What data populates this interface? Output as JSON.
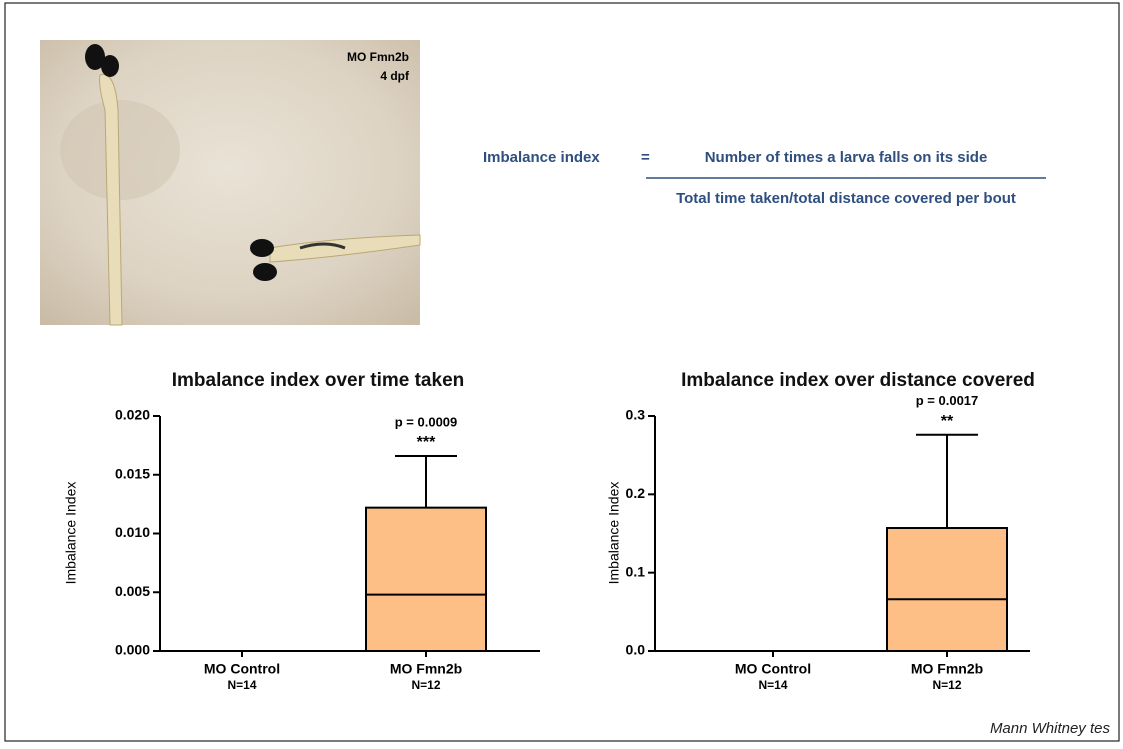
{
  "photo": {
    "labels": [
      "MO Fmn2b",
      "4 dpf"
    ]
  },
  "formula": {
    "term": "Imbalance index",
    "equals": "=",
    "numerator": "Number of times a larva falls on its side",
    "denominator": "Total time taken/total distance covered per bout"
  },
  "chart_data": [
    {
      "type": "box",
      "title": "Imbalance index  over time taken",
      "y_label": "Imbalance Index",
      "categories": [
        "MO Control",
        "MO Fmn2b"
      ],
      "n_labels": [
        "N=14",
        "N=12"
      ],
      "boxes": [
        {
          "min": 0,
          "q1": 0,
          "median": 0,
          "q3": 0,
          "max": 0
        },
        {
          "min": 0,
          "q1": 0,
          "median": 0.0048,
          "q3": 0.0122,
          "max": 0.0166
        }
      ],
      "annotations": [
        null,
        {
          "p": "p = 0.0009",
          "stars": "***"
        }
      ],
      "color": "#fdbf85",
      "ylim": [
        0,
        0.02
      ],
      "yticks": [
        {
          "value": 0,
          "label": "0.000"
        },
        {
          "value": 0.005,
          "label": "0.005"
        },
        {
          "value": 0.01,
          "label": "0.010"
        },
        {
          "value": 0.015,
          "label": "0.015"
        },
        {
          "value": 0.02,
          "label": "0.020"
        }
      ]
    },
    {
      "type": "box",
      "title": "Imbalance index over distance covered",
      "y_label": "Imbalance Index",
      "categories": [
        "MO Control",
        "MO Fmn2b"
      ],
      "n_labels": [
        "N=14",
        "N=12"
      ],
      "boxes": [
        {
          "min": 0,
          "q1": 0,
          "median": 0,
          "q3": 0,
          "max": 0
        },
        {
          "min": 0,
          "q1": 0,
          "median": 0.066,
          "q3": 0.157,
          "max": 0.276
        }
      ],
      "annotations": [
        null,
        {
          "p": "p = 0.0017",
          "stars": "**"
        }
      ],
      "color": "#fdbf85",
      "ylim": [
        0,
        0.3
      ],
      "yticks": [
        {
          "value": 0,
          "label": "0.0"
        },
        0.1,
        0.2,
        0.3
      ]
    }
  ],
  "footnote": "Mann Whitney tes"
}
